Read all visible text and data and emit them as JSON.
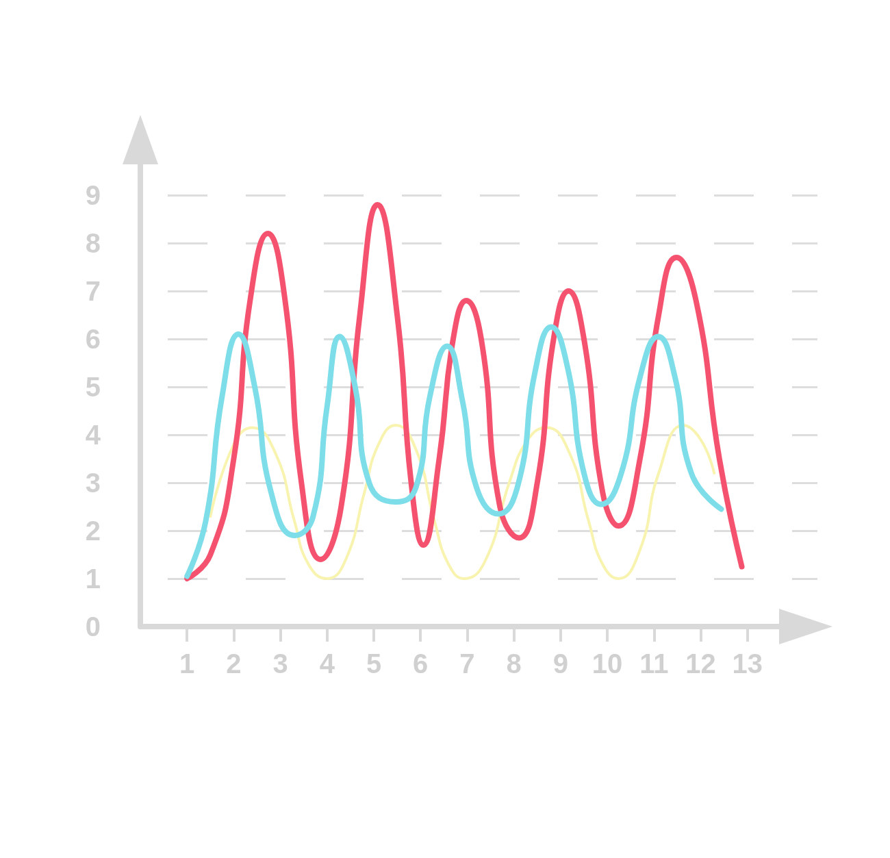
{
  "chart_data": {
    "type": "line",
    "xlim": [
      0,
      14.5
    ],
    "ylim": [
      0,
      10.5
    ],
    "xticks": [
      1,
      2,
      3,
      4,
      5,
      6,
      7,
      8,
      9,
      10,
      11,
      12,
      13
    ],
    "yticks": [
      0,
      1,
      2,
      3,
      4,
      5,
      6,
      7,
      8,
      9
    ],
    "grid": "y",
    "marker": "none",
    "line_style": "solid",
    "series": [
      {
        "color": "#f8f4b0",
        "x": [
          1.5,
          2.0,
          2.4,
          2.9,
          3.3,
          3.6,
          4.0,
          4.4,
          4.8,
          5.1,
          5.47,
          5.9,
          6.3,
          6.6,
          6.94,
          7.4,
          7.9,
          8.3,
          8.7,
          9.2,
          9.6,
          9.9,
          10.24,
          10.7,
          11.1,
          11.63,
          12.0,
          12.29
        ],
        "values": [
          2.3,
          3.8,
          4.15,
          3.6,
          2.2,
          1.3,
          1.0,
          1.4,
          2.8,
          3.8,
          4.2,
          3.7,
          2.2,
          1.3,
          1.0,
          1.4,
          3.0,
          3.9,
          4.15,
          3.6,
          2.2,
          1.3,
          1.0,
          1.6,
          3.2,
          4.2,
          3.9,
          3.2
        ]
      },
      {
        "color": "#f4526e",
        "x": [
          1,
          1.5,
          2,
          2.35,
          2.73,
          3.1,
          3.45,
          3.86,
          4.3,
          4.7,
          5.08,
          5.5,
          5.8,
          6.06,
          6.4,
          6.7,
          6.98,
          7.3,
          7.7,
          8.11,
          8.5,
          8.85,
          9.17,
          9.5,
          9.9,
          10.24,
          10.7,
          11.1,
          11.48,
          11.9,
          12.4,
          12.88
        ],
        "values": [
          1.0,
          1.5,
          3.5,
          6.8,
          8.2,
          6.8,
          3.0,
          1.4,
          2.5,
          6.5,
          8.8,
          6.5,
          3.0,
          1.7,
          3.5,
          6.0,
          6.8,
          6.0,
          2.5,
          1.85,
          3.0,
          6.0,
          7.0,
          6.0,
          2.8,
          2.1,
          3.5,
          6.5,
          7.7,
          6.8,
          3.5,
          1.25
        ]
      },
      {
        "color": "#7ddde8",
        "x": [
          1,
          1.4,
          1.75,
          2.1,
          2.45,
          2.8,
          3.3,
          3.7,
          4.0,
          4.27,
          4.6,
          4.9,
          5.47,
          5.9,
          6.2,
          6.57,
          6.9,
          7.2,
          7.67,
          8.1,
          8.45,
          8.8,
          9.15,
          9.5,
          9.87,
          10.3,
          10.7,
          11.09,
          11.45,
          11.8,
          12.44
        ],
        "values": [
          1.05,
          2.2,
          4.8,
          6.1,
          5.0,
          2.8,
          1.9,
          2.3,
          4.6,
          6.05,
          5.0,
          3.0,
          2.6,
          2.9,
          4.8,
          5.85,
          4.7,
          2.9,
          2.35,
          3.0,
          5.3,
          6.25,
          5.4,
          3.2,
          2.55,
          3.2,
          5.2,
          6.05,
          5.2,
          3.2,
          2.45
        ]
      }
    ]
  }
}
